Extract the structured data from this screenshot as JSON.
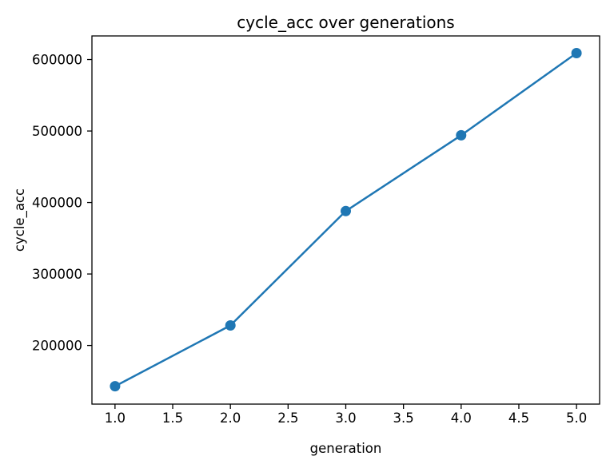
{
  "chart_data": {
    "type": "line",
    "title": "cycle_acc over generations",
    "xlabel": "generation",
    "ylabel": "cycle_acc",
    "x": [
      1.0,
      2.0,
      3.0,
      4.0,
      5.0
    ],
    "y": [
      143000,
      228000,
      388000,
      494000,
      609000
    ],
    "series": [
      {
        "name": "cycle_acc",
        "x": [
          1.0,
          2.0,
          3.0,
          4.0,
          5.0
        ],
        "y": [
          143000,
          228000,
          388000,
          494000,
          609000
        ]
      }
    ],
    "xlim": [
      0.8,
      5.2
    ],
    "ylim": [
      118000,
      633000
    ],
    "xticks": {
      "values": [
        1.0,
        1.5,
        2.0,
        2.5,
        3.0,
        3.5,
        4.0,
        4.5,
        5.0
      ],
      "labels": [
        "1.0",
        "1.5",
        "2.0",
        "2.5",
        "3.0",
        "3.5",
        "4.0",
        "4.5",
        "5.0"
      ]
    },
    "yticks": {
      "values": [
        200000,
        300000,
        400000,
        500000,
        600000
      ],
      "labels": [
        "200000",
        "300000",
        "400000",
        "500000",
        "600000"
      ]
    },
    "line_color": "#1f77b4",
    "marker": "circle",
    "marker_color": "#1f77b4",
    "spine_color": "#000000",
    "background": "#ffffff",
    "grid": false,
    "legend": "none"
  }
}
